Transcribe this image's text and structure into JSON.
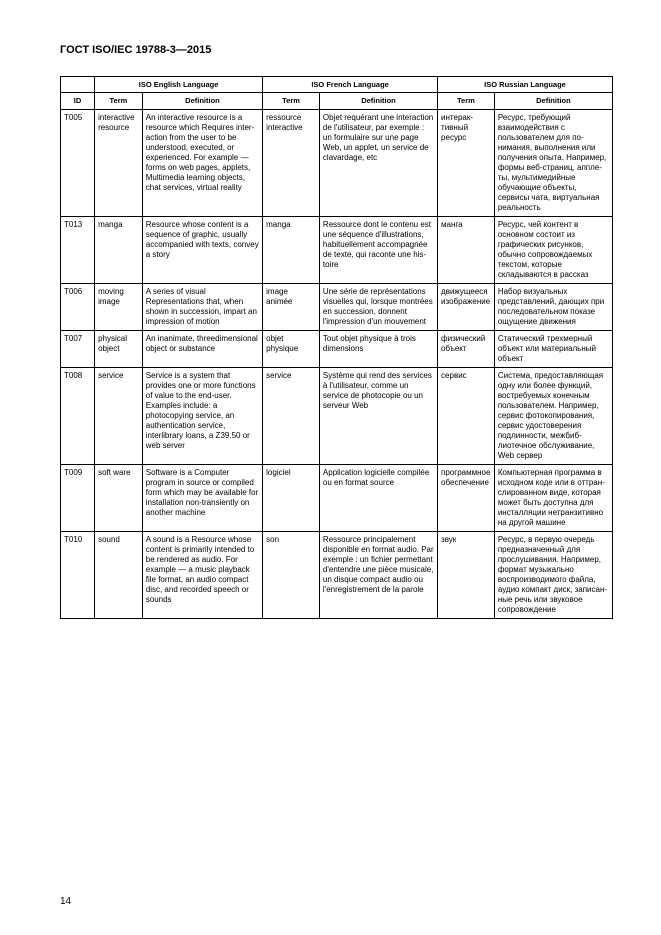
{
  "header": "ГОСТ ISO/IEC 19788-3—2015",
  "page_number": "14",
  "table": {
    "group_en": "ISO English Language",
    "group_fr": "ISO French Language",
    "group_ru": "ISO Russian Language",
    "col_id": "ID",
    "col_term": "Term",
    "col_def": "Definition",
    "rows": [
      {
        "id": "T005",
        "term_en": "interac­tive re­source",
        "def_en": "An interactive re­source is a resource which Requires inter­action from the user to be understood, exe­cuted, or experienced. For example — forms on web pages, ap­plets, Multimedia learning objects, chat services, virtual reality",
        "term_fr": "ressource interactive",
        "def_fr": "Objet requérant une interaction de l'utili­sateur, par exemple : un formulaire sur une page Web, un applet, un service de clavar­dage, etc",
        "term_ru": "интерак­тивный ресурс",
        "def_ru": "Ресурс, требующий взаимодействия с пользователем для по­нимания, выполнения или получения опы­та. Например, формы веб-страниц, аппле­ты, мультимедийные обучающие объекты, сервисы чата, вирту­альная реальность"
      },
      {
        "id": "T013",
        "term_en": "manga",
        "def_en": "Resource whose con­tent is a sequence of graphic, usually ac­companied with texts, convey a story",
        "term_fr": "manga",
        "def_fr": "Ressource dont le contenu est une sé­quence d'illustrations, habituellement ac­compagnée de texte, qui raconte une his­toire",
        "term_ru": "манга",
        "def_ru": "Ресурс, чей контент в основном состоит из графических рисун­ков, обычно сопрово­ждаемых текстом, ко­торые складываются в рассказ"
      },
      {
        "id": "T006",
        "term_en": "moving image",
        "def_en": "A series of visual Representations that, when shown in suc­cession, impart an im­pression of motion",
        "term_fr": "image animée",
        "def_fr": "Une série de repré­sentations visuelles qui, lorsque mon­trées en succession, donnent l'impression d'un mouvement",
        "term_ru": "движуще­еся изо­бражение",
        "def_ru": "Набор визуальных представлений, даю­щих при последова­тельном показе ощу­щение движения"
      },
      {
        "id": "T007",
        "term_en": "physi­cal ob­ject",
        "def_en": "An inanimate, threed­imensional object or substance",
        "term_fr": "objet physique",
        "def_fr": "Tout objet physique à trois dimensions",
        "term_ru": "физи­ческий объект",
        "def_ru": "Статический трехмер­ный объект или мате­риальный объект"
      },
      {
        "id": "T008",
        "term_en": "service",
        "def_en": "Service is a system that provides one or more functions of val­ue to the end-user. Examples include: a photocopying service, an authentication ser­vice, interlibrary loans, a Z39.50 or web server",
        "term_fr": "service",
        "def_fr": "Système qui rend des services à l'utilisateur, comme un service de photocopie ou un ser­veur Web",
        "term_ru": "сервис",
        "def_ru": "Система, предостав­ляющая одну или более функций, вос­требуемых конечным пользователем. Например, сервис фотокопирования, сервис удостоверения подлинности, межбиб­лиотечное обслужива­ние, Web сервер"
      },
      {
        "id": "T009",
        "term_en": "soft ware",
        "def_en": "Software is a Computer program in source or compiled form which may be available for installation non-transiently on another machine",
        "term_fr": "logiciel",
        "def_fr": "Application logicielle compilée ou en format source",
        "term_ru": "програм­мное обе­спечение",
        "def_ru": "Компьютерная про­грамма в исходном коде или в оттран­слированном виде, которая может быть доступна для инстал­ляции нетранзитивно на другой машине"
      },
      {
        "id": "T010",
        "term_en": "sound",
        "def_en": "A sound is a Resource whose content is pri­marily intended to be rendered as audio. For example — a music playback file format, an audio com­pact disc, and record­ed speech or sounds",
        "term_fr": "son",
        "def_fr": "Ressource principa­lement disponible en format audio. Par exemple : un fichier permettant d'entendre une pièce musicale, un disque compact audio ou l'enregistre­ment de la parole",
        "term_ru": "звук",
        "def_ru": "Ресурс, в первую оче­редь предназначенный для прослушивания. Например, формат му­зыкально воспроизво­димого файла, аудио компакт диск, записан­ные речь или звуковое сопровождение"
      }
    ]
  }
}
